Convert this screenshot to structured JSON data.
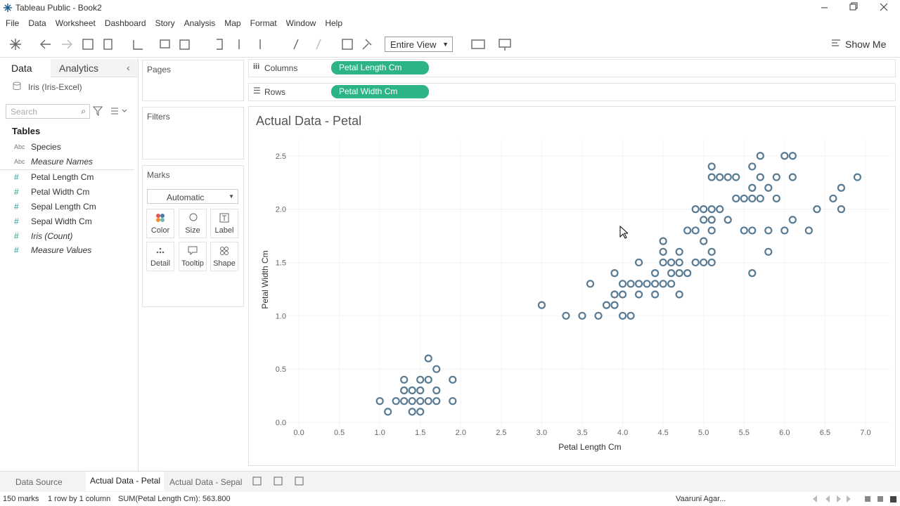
{
  "app": {
    "title": "Tableau Public - Book2",
    "menu": [
      "File",
      "Data",
      "Worksheet",
      "Dashboard",
      "Story",
      "Analysis",
      "Map",
      "Format",
      "Window",
      "Help"
    ],
    "view_select": "Entire View",
    "show_me": "Show Me"
  },
  "data_pane": {
    "tabs": [
      "Data",
      "Analytics"
    ],
    "source": "Iris (Iris-Excel)",
    "search_placeholder": "Search",
    "tables_heading": "Tables",
    "fields": [
      {
        "type": "Abc",
        "name": "Species"
      },
      {
        "type": "Abc",
        "name": "Measure Names"
      },
      {
        "type": "#",
        "name": "Petal Length Cm"
      },
      {
        "type": "#",
        "name": "Petal Width Cm"
      },
      {
        "type": "#",
        "name": "Sepal Length Cm"
      },
      {
        "type": "#",
        "name": "Sepal Width Cm"
      },
      {
        "type": "#",
        "name": "Iris (Count)"
      },
      {
        "type": "#",
        "name": "Measure Values"
      }
    ]
  },
  "cards": {
    "pages": "Pages",
    "filters": "Filters",
    "marks": {
      "title": "Marks",
      "type": "Automatic",
      "buttons": [
        "Color",
        "Size",
        "Label",
        "Detail",
        "Tooltip",
        "Shape"
      ]
    }
  },
  "shelves": {
    "columns_label": "Columns",
    "columns_pill": "Petal Length Cm",
    "rows_label": "Rows",
    "rows_pill": "Petal Width Cm"
  },
  "sheet_tabs": [
    "Data Source",
    "Actual Data - Petal",
    "Actual Data - Sepal"
  ],
  "status": {
    "marks": "150 marks",
    "layout": "1 row by 1 column",
    "sum": "SUM(Petal Length Cm): 563.800",
    "user": "Vaaruni Agar..."
  },
  "chart_data": {
    "type": "scatter",
    "title": "Actual Data - Petal",
    "x_label": "Petal Length Cm",
    "y_label": "Petal Width Cm",
    "color": "#587a93",
    "grid": true,
    "xlim": [
      -0.3,
      7.3
    ],
    "ylim": [
      -0.05,
      2.65
    ],
    "xticks": [
      {
        "value": 0,
        "label": "0.0"
      },
      0.5,
      {
        "value": 1,
        "label": "1.0"
      },
      1.5,
      {
        "value": 2,
        "label": "2.0"
      },
      2.5,
      {
        "value": 3,
        "label": "3.0"
      },
      3.5,
      {
        "value": 4,
        "label": "4.0"
      },
      4.5,
      {
        "value": 5,
        "label": "5.0"
      },
      5.5,
      {
        "value": 6,
        "label": "6.0"
      },
      6.5,
      {
        "value": 7,
        "label": "7.0"
      }
    ],
    "yticks": [
      {
        "value": 0,
        "label": "0.0"
      },
      0.5,
      {
        "value": 1,
        "label": "1.0"
      },
      1.5,
      {
        "value": 2,
        "label": "2.0"
      },
      2.5
    ],
    "x": [
      1.0,
      1.1,
      1.2,
      1.3,
      1.4,
      1.5,
      1.6,
      1.7,
      1.9,
      1.4,
      1.5,
      1.3,
      1.4,
      1.5,
      1.7,
      1.3,
      1.5,
      1.6,
      1.9,
      1.7,
      1.6,
      3.3,
      3.5,
      3.7,
      4.0,
      4.1,
      3.0,
      3.8,
      3.9,
      3.9,
      4.0,
      4.2,
      4.4,
      4.7,
      3.6,
      4.0,
      4.1,
      4.2,
      4.3,
      4.4,
      4.5,
      4.6,
      3.9,
      4.4,
      4.6,
      4.7,
      4.8,
      5.6,
      4.2,
      4.5,
      4.6,
      4.7,
      4.9,
      5.0,
      5.1,
      4.5,
      4.7,
      5.1,
      5.8,
      4.5,
      5.0,
      4.8,
      4.9,
      5.1,
      5.5,
      5.6,
      5.8,
      6.0,
      6.3,
      5.0,
      5.1,
      5.3,
      6.1,
      4.9,
      5.0,
      5.1,
      5.2,
      6.4,
      6.7,
      5.4,
      5.5,
      5.6,
      5.7,
      5.9,
      6.6,
      5.6,
      5.8,
      6.7,
      5.1,
      5.2,
      5.3,
      5.4,
      5.7,
      5.9,
      6.1,
      6.9,
      5.1,
      5.6,
      5.7,
      6.0,
      6.1
    ],
    "y": [
      0.2,
      0.1,
      0.2,
      0.2,
      0.2,
      0.2,
      0.2,
      0.2,
      0.2,
      0.1,
      0.1,
      0.3,
      0.3,
      0.3,
      0.3,
      0.4,
      0.4,
      0.4,
      0.4,
      0.5,
      0.6,
      1.0,
      1.0,
      1.0,
      1.0,
      1.0,
      1.1,
      1.1,
      1.1,
      1.2,
      1.2,
      1.2,
      1.2,
      1.2,
      1.3,
      1.3,
      1.3,
      1.3,
      1.3,
      1.3,
      1.3,
      1.3,
      1.4,
      1.4,
      1.4,
      1.4,
      1.4,
      1.4,
      1.5,
      1.5,
      1.5,
      1.5,
      1.5,
      1.5,
      1.5,
      1.6,
      1.6,
      1.6,
      1.6,
      1.7,
      1.7,
      1.8,
      1.8,
      1.8,
      1.8,
      1.8,
      1.8,
      1.8,
      1.8,
      1.9,
      1.9,
      1.9,
      1.9,
      2.0,
      2.0,
      2.0,
      2.0,
      2.0,
      2.0,
      2.1,
      2.1,
      2.1,
      2.1,
      2.1,
      2.1,
      2.2,
      2.2,
      2.2,
      2.3,
      2.3,
      2.3,
      2.3,
      2.3,
      2.3,
      2.3,
      2.3,
      2.4,
      2.4,
      2.5,
      2.5,
      2.5
    ]
  }
}
